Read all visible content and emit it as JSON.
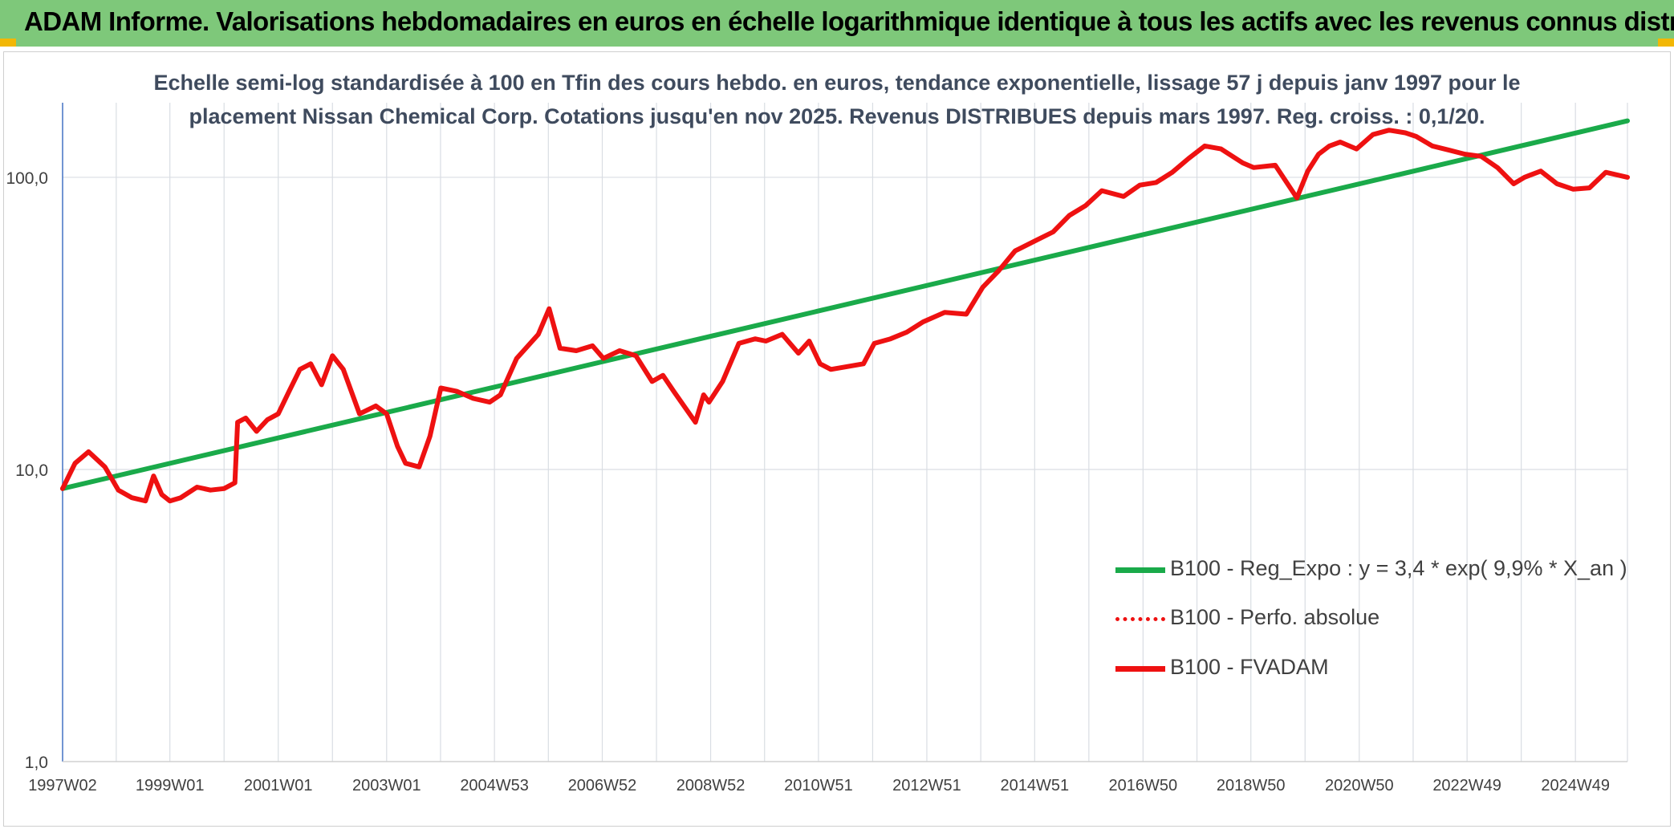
{
  "header": {
    "title": "ADAM Informe. Valorisations hebdomadaires en euros en échelle logarithmique identique à tous les actifs avec les revenus connus distribués"
  },
  "colors": {
    "header_bg": "#7ec87a",
    "corner_accent": "#f2b705",
    "regression": "#1aaa4a",
    "fvadam": "#ee1111",
    "perfo": "#ee1111",
    "grid": "#d9dde3",
    "axis": "#4472c4"
  },
  "chart_data": {
    "type": "line",
    "title_line1": "Echelle semi-log standardisée à 100 en Tfin des cours hebdo. en euros, tendance exponentielle, lissage 57 j depuis janv 1997 pour le",
    "title_line2": "placement Nissan Chemical Corp. Cotations jusqu'en nov 2025. Revenus DISTRIBUES depuis mars 1997. Reg. croiss. : 0,1/20.",
    "y_scale": "log",
    "ylim": [
      1,
      180
    ],
    "y_ticks": [
      1,
      10,
      100
    ],
    "y_tick_labels": [
      "1,0",
      "10,0",
      "100,0"
    ],
    "x_range": [
      1997.02,
      2025.9
    ],
    "x_tick_labels": [
      "1997W02",
      "1999W01",
      "2001W01",
      "2003W01",
      "2004W53",
      "2006W52",
      "2008W52",
      "2010W51",
      "2012W51",
      "2014W51",
      "2016W50",
      "2018W50",
      "2020W50",
      "2022W49",
      "2024W49"
    ],
    "x_tick_years": [
      1997.02,
      1999.0,
      2001.0,
      2003.0,
      2004.99,
      2006.98,
      2008.98,
      2010.97,
      2012.97,
      2014.96,
      2016.96,
      2018.95,
      2020.95,
      2022.94,
      2024.94
    ],
    "grid": true,
    "legend_position": "bottom-right",
    "legend": [
      "B100 - Reg_Expo : y = 3,4 * exp( 9,9% *  X_an )",
      "B100 - Perfo. absolue",
      "B100 - FVADAM"
    ],
    "series": [
      {
        "name": "B100 - Reg_Expo : y = 3,4 * exp( 9,9% *  X_an )",
        "style": "solid-green",
        "x": [
          1997.02,
          2025.9
        ],
        "y": [
          8.6,
          156
        ]
      },
      {
        "name": "B100 - FVADAM",
        "style": "solid-red",
        "x": [
          1997.02,
          1997.25,
          1997.5,
          1997.8,
          1998.05,
          1998.3,
          1998.55,
          1998.7,
          1998.85,
          1999.0,
          1999.2,
          1999.5,
          1999.75,
          2000.0,
          2000.2,
          2000.25,
          2000.4,
          2000.6,
          2000.8,
          2001.0,
          2001.2,
          2001.4,
          2001.6,
          2001.8,
          2002.0,
          2002.2,
          2002.5,
          2002.8,
          2003.0,
          2003.2,
          2003.35,
          2003.6,
          2003.8,
          2004.0,
          2004.3,
          2004.6,
          2004.9,
          2005.1,
          2005.4,
          2005.8,
          2006.0,
          2006.2,
          2006.5,
          2006.8,
          2007.0,
          2007.3,
          2007.6,
          2007.9,
          2008.1,
          2008.3,
          2008.7,
          2008.85,
          2008.95,
          2009.2,
          2009.5,
          2009.8,
          2010.0,
          2010.3,
          2010.6,
          2010.8,
          2011.0,
          2011.2,
          2011.5,
          2011.8,
          2012.0,
          2012.3,
          2012.6,
          2012.9,
          2013.3,
          2013.7,
          2014.0,
          2014.3,
          2014.6,
          2015.0,
          2015.3,
          2015.6,
          2015.9,
          2016.2,
          2016.6,
          2016.9,
          2017.2,
          2017.5,
          2017.8,
          2018.1,
          2018.4,
          2018.8,
          2019.0,
          2019.4,
          2019.8,
          2020.0,
          2020.2,
          2020.4,
          2020.6,
          2020.9,
          2021.2,
          2021.5,
          2021.8,
          2022.0,
          2022.3,
          2022.6,
          2022.9,
          2023.2,
          2023.5,
          2023.8,
          2024.0,
          2024.3,
          2024.6,
          2024.9,
          2025.2,
          2025.5,
          2025.9
        ],
        "y": [
          8.6,
          10.5,
          11.5,
          10.2,
          8.5,
          8.0,
          7.8,
          9.5,
          8.2,
          7.8,
          8.0,
          8.7,
          8.5,
          8.6,
          9.0,
          14.5,
          15.0,
          13.5,
          14.8,
          15.5,
          18.5,
          22.0,
          23.0,
          19.5,
          24.5,
          22.0,
          15.5,
          16.5,
          15.5,
          12.0,
          10.5,
          10.2,
          13.0,
          19.0,
          18.5,
          17.5,
          17.0,
          18.0,
          24.0,
          29.0,
          35.5,
          26.0,
          25.5,
          26.5,
          24.0,
          25.5,
          24.5,
          20.0,
          21.0,
          18.5,
          14.5,
          18.0,
          17.0,
          20.0,
          27.0,
          28.0,
          27.5,
          29.0,
          25.0,
          27.5,
          23.0,
          22.0,
          22.5,
          23.0,
          27.0,
          28.0,
          29.5,
          32.0,
          34.5,
          34.0,
          42.0,
          48.0,
          56.0,
          61.0,
          65.0,
          74.0,
          80.0,
          90.0,
          86.0,
          94.0,
          96.0,
          104.0,
          116.0,
          128.0,
          125.0,
          112.0,
          108.0,
          110.0,
          85.0,
          105.0,
          120.0,
          128.0,
          132.0,
          125.0,
          140.0,
          145.0,
          142.0,
          138.0,
          128.0,
          124.0,
          120.0,
          118.0,
          108.0,
          95.0,
          100.0,
          105.0,
          95.0,
          91.0,
          92.0,
          104.0,
          100.0
        ]
      },
      {
        "name": "B100 - Perfo. absolue",
        "style": "dotted-red",
        "x": [],
        "y": []
      }
    ]
  }
}
